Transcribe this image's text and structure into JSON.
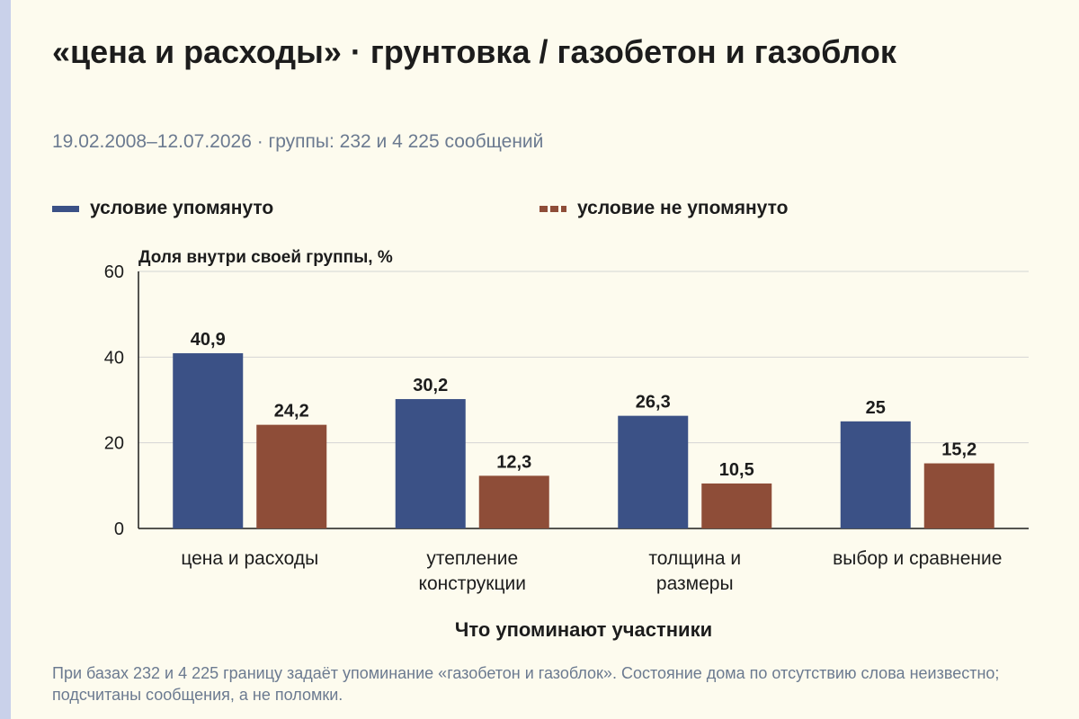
{
  "chart_data": {
    "type": "bar",
    "title": "«цена и расходы» · грунтовка / газобетон и газоблок",
    "subtitle": "19.02.2008–12.07.2026 · группы: 232 и 4 225 сообщений",
    "ylabel": "Доля внутри своей группы, %",
    "xlabel": "Что упоминают участники",
    "ylim": [
      0,
      60
    ],
    "yticks": [
      0,
      20,
      40,
      60
    ],
    "grid": true,
    "legend_position": "top",
    "categories": [
      [
        "цена и расходы"
      ],
      [
        "утепление",
        "конструкции"
      ],
      [
        "толщина и",
        "размеры"
      ],
      [
        "выбор и сравнение"
      ]
    ],
    "series": [
      {
        "name": "условие упомянуто",
        "values": [
          40.9,
          30.2,
          26.3,
          25
        ],
        "labels": [
          "40,9",
          "30,2",
          "26,3",
          "25"
        ],
        "color": "#3b5186"
      },
      {
        "name": "условие не упомянуто",
        "values": [
          24.2,
          12.3,
          10.5,
          15.2
        ],
        "labels": [
          "24,2",
          "12,3",
          "10,5",
          "15,2"
        ],
        "color": "#8e4d38"
      }
    ],
    "note": "При базах 232 и 4 225 границу задаёт упоминание «газобетон и газоблок». Состояние дома по отсутствию слова неизвестно; подсчитаны сообщения, а не поломки."
  }
}
